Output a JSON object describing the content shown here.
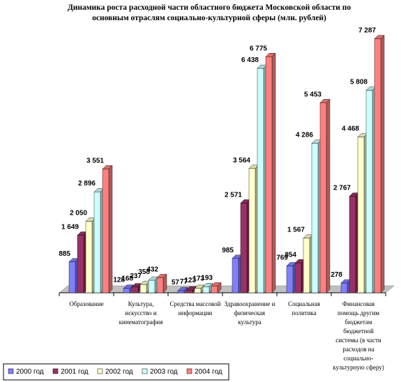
{
  "chart_data": {
    "type": "bar3d",
    "title": "Динамика роста расходной части областного бюджета Московской области по основным отраслям социально-культурной сферы (млн. рублей)",
    "categories": [
      "Образование",
      "Культура, искусство и кинематография",
      "Средства массовой информации",
      "Здравоохранение и физическая культура",
      "Социальная политика",
      "Финансовая помощь другим бюджетам бюджетной системы (в части расходов на социально-культурную сферу)"
    ],
    "ylim": [
      0,
      7500
    ],
    "legend": "bottom-left",
    "series": [
      {
        "name": "2000 год",
        "color": "#8080ff",
        "values": [
          885,
          128,
          57,
          985,
          769,
          278
        ]
      },
      {
        "name": "2001 год",
        "color": "#993366",
        "values": [
          1649,
          168,
          77,
          2571,
          854,
          2767
        ],
        "value_labels": [
          "1 649",
          "168",
          "77",
          "2 571",
          "854",
          "2 767"
        ]
      },
      {
        "name": "2002 год",
        "color": "#ffffcc",
        "values": [
          2050,
          237,
          123,
          3564,
          1567,
          4468
        ],
        "value_labels": [
          "2 050",
          "237",
          "123",
          "3 564",
          "1 567",
          "4 468"
        ]
      },
      {
        "name": "2003 год",
        "color": "#ccffff",
        "values": [
          2896,
          358,
          173,
          6438,
          4286,
          5808
        ],
        "value_labels": [
          "2 896",
          "358",
          "173",
          "6 438",
          "4 286",
          "5 808"
        ]
      },
      {
        "name": "2004 год",
        "color": "#ff8080",
        "values": [
          3551,
          432,
          193,
          6775,
          5453,
          7287
        ],
        "value_labels": [
          "3 551",
          "432",
          "193",
          "6 775",
          "5 453",
          "7 287"
        ]
      }
    ]
  }
}
